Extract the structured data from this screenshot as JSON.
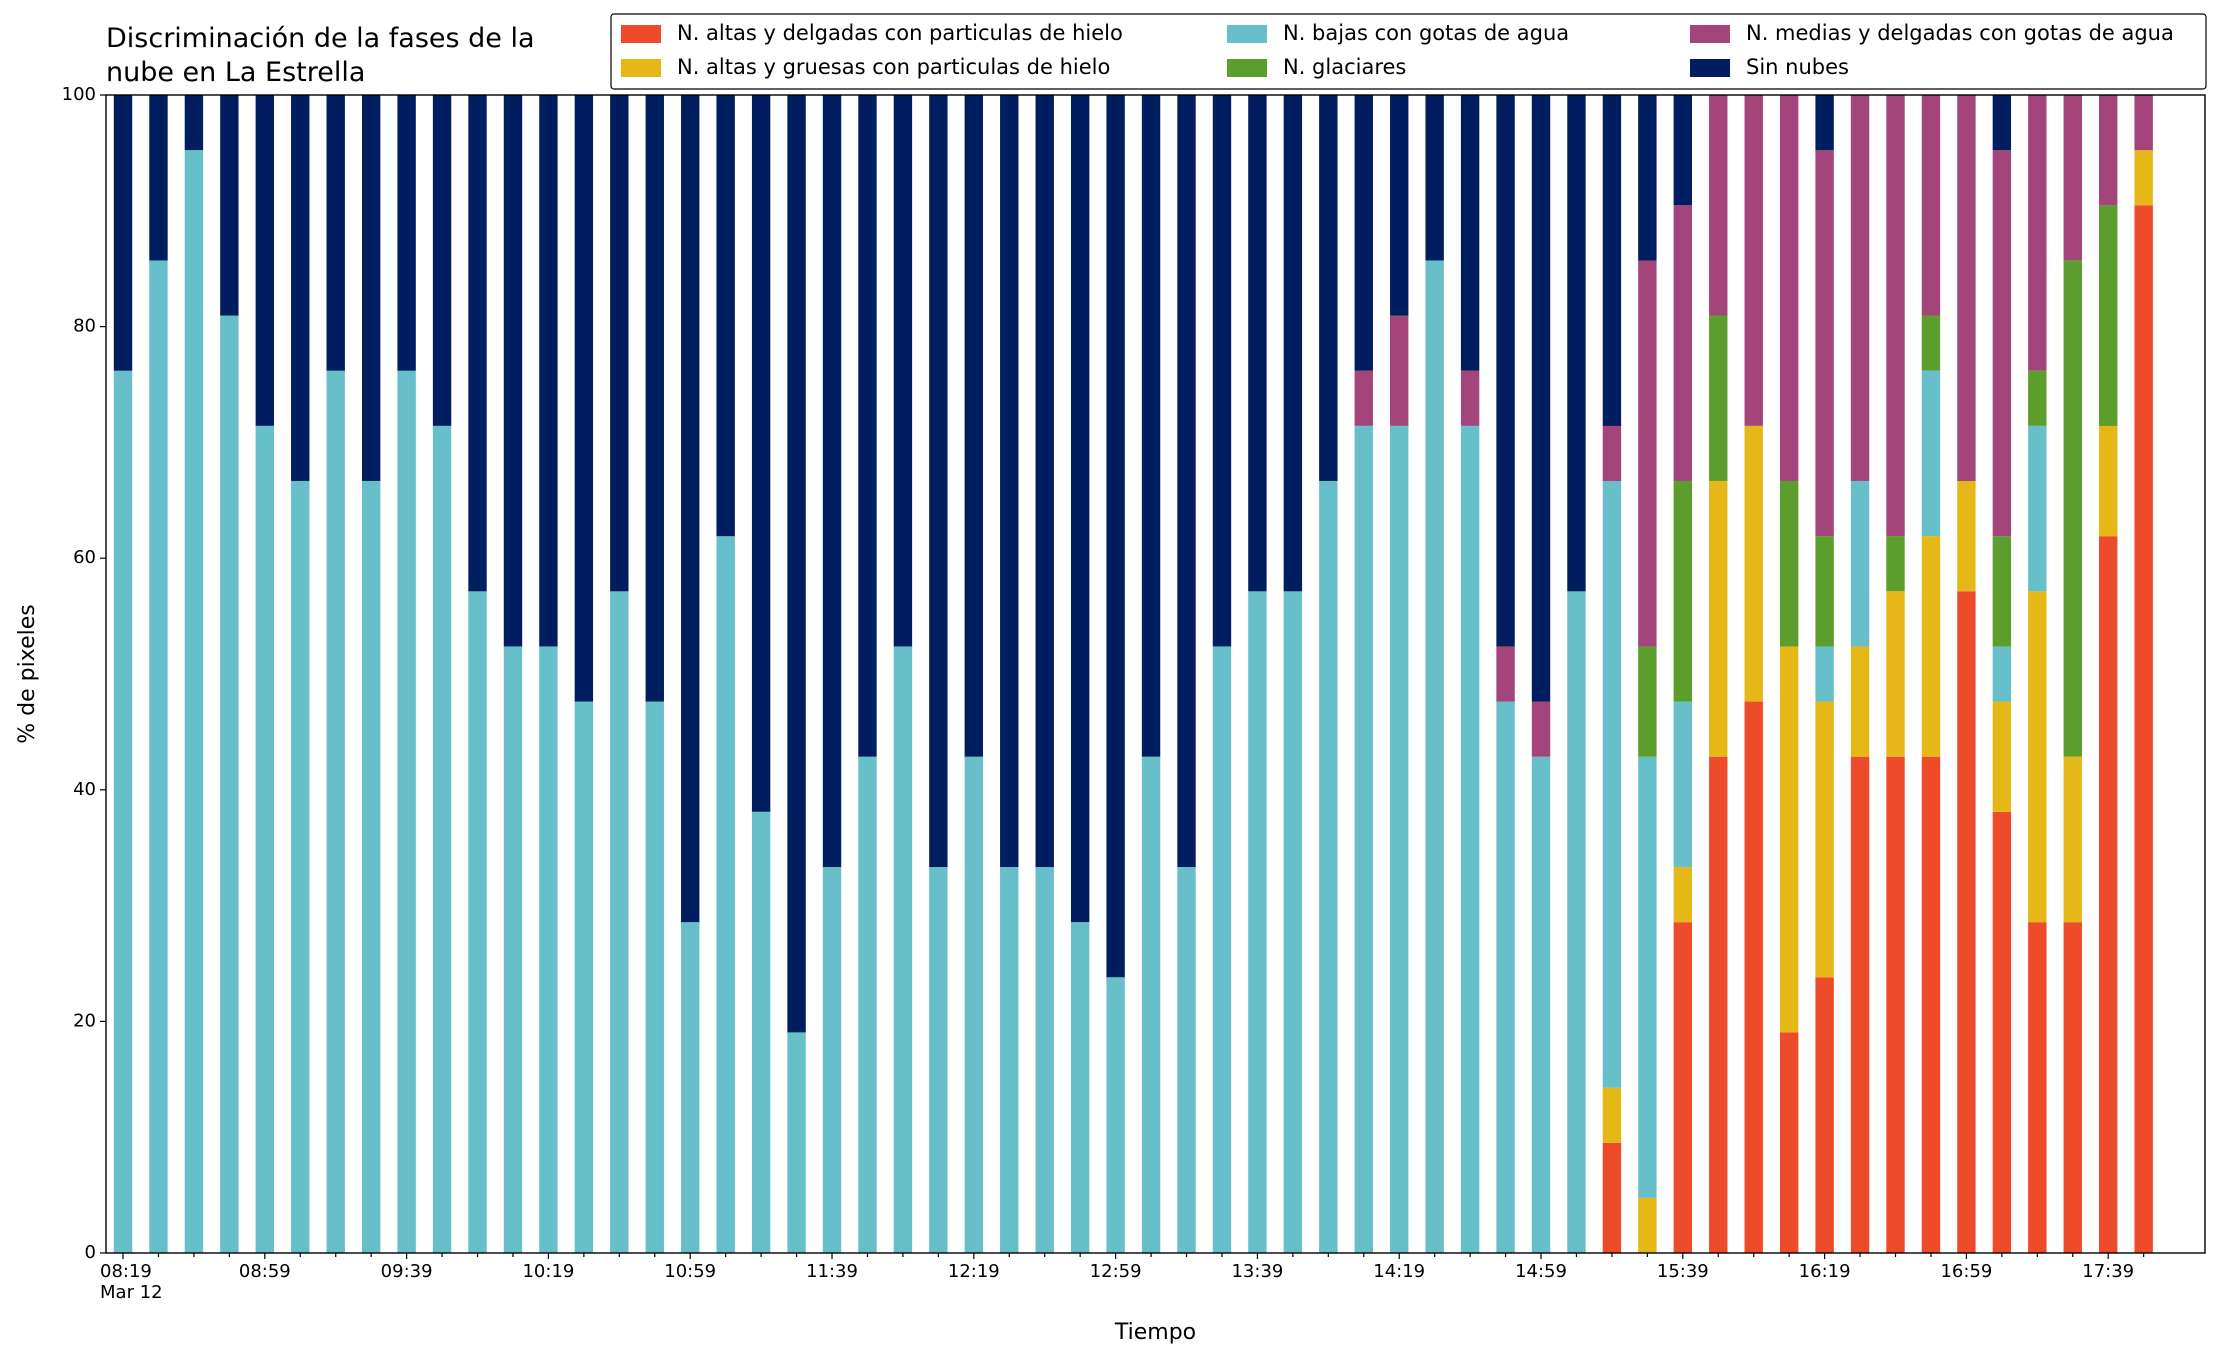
{
  "chart_data": {
    "type": "stacked_bar",
    "title": "Discriminación de la fases de la\nnube en La Estrella",
    "xlabel": "Tiempo",
    "ylabel": "% de pixeles",
    "categories": [
      "08:19\nMar 12",
      null,
      null,
      null,
      "08:59",
      null,
      null,
      null,
      "09:39",
      null,
      null,
      null,
      "10:19",
      null,
      null,
      null,
      "10:59",
      null,
      null,
      null,
      "11:39",
      null,
      null,
      null,
      "12:19",
      null,
      null,
      null,
      "12:59",
      null,
      null,
      null,
      "13:39",
      null,
      null,
      null,
      "14:19",
      null,
      null,
      null,
      "14:59",
      null,
      null,
      null,
      "15:39",
      null,
      null,
      null,
      "16:19",
      null,
      null,
      null,
      "16:59",
      null,
      null,
      null,
      "17:39",
      null
    ],
    "series": [
      {
        "name": "N. altas y delgadas con particulas de hielo",
        "color": "#ee4b2b",
        "values": [
          0,
          0,
          0,
          0,
          0,
          0,
          0,
          0,
          0,
          0,
          0,
          0,
          0,
          0,
          0,
          0,
          0,
          0,
          0,
          0,
          0,
          0,
          0,
          0,
          0,
          0,
          0,
          0,
          0,
          0,
          0,
          0,
          0,
          0,
          0,
          0,
          0,
          0,
          0,
          0,
          0,
          0,
          9.52,
          0,
          28.57,
          42.86,
          47.62,
          19.05,
          23.81,
          42.86,
          42.86,
          42.86,
          57.14,
          38.1,
          28.57,
          28.57,
          61.9,
          90.48
        ]
      },
      {
        "name": "N. altas y gruesas con particulas de hielo",
        "color": "#e6b817",
        "values": [
          0,
          0,
          0,
          0,
          0,
          0,
          0,
          0,
          0,
          0,
          0,
          0,
          0,
          0,
          0,
          0,
          0,
          0,
          0,
          0,
          0,
          0,
          0,
          0,
          0,
          0,
          0,
          0,
          0,
          0,
          0,
          0,
          0,
          0,
          0,
          0,
          0,
          0,
          0,
          0,
          0,
          0,
          4.76,
          4.76,
          4.76,
          23.81,
          23.81,
          33.33,
          23.81,
          9.52,
          14.29,
          19.05,
          9.52,
          9.52,
          28.57,
          14.29,
          9.52,
          4.76
        ]
      },
      {
        "name": "N. bajas con gotas de agua",
        "color": "#67bfca",
        "values": [
          76.19,
          85.71,
          95.24,
          80.95,
          71.43,
          66.67,
          76.19,
          66.67,
          76.19,
          71.43,
          57.14,
          52.38,
          52.38,
          47.62,
          57.14,
          47.62,
          28.57,
          61.9,
          38.1,
          19.05,
          33.33,
          42.86,
          52.38,
          33.33,
          42.86,
          33.33,
          33.33,
          28.57,
          23.81,
          42.86,
          33.33,
          52.38,
          57.14,
          57.14,
          66.67,
          71.43,
          71.43,
          85.71,
          71.43,
          47.62,
          42.86,
          57.14,
          52.38,
          38.1,
          14.29,
          0,
          0,
          0,
          4.76,
          14.29,
          0,
          14.29,
          0,
          4.76,
          14.29,
          0,
          0,
          0
        ]
      },
      {
        "name": "N. glaciares",
        "color": "#5c9e2c",
        "values": [
          0,
          0,
          0,
          0,
          0,
          0,
          0,
          0,
          0,
          0,
          0,
          0,
          0,
          0,
          0,
          0,
          0,
          0,
          0,
          0,
          0,
          0,
          0,
          0,
          0,
          0,
          0,
          0,
          0,
          0,
          0,
          0,
          0,
          0,
          0,
          0,
          0,
          0,
          0,
          0,
          0,
          0,
          0,
          9.52,
          19.05,
          14.29,
          0,
          14.29,
          9.52,
          0,
          4.76,
          4.76,
          0,
          9.52,
          4.76,
          42.86,
          19.05,
          0
        ]
      },
      {
        "name": "N. medias y delgadas con gotas de agua",
        "color": "#a3447a",
        "values": [
          0,
          0,
          0,
          0,
          0,
          0,
          0,
          0,
          0,
          0,
          0,
          0,
          0,
          0,
          0,
          0,
          0,
          0,
          0,
          0,
          0,
          0,
          0,
          0,
          0,
          0,
          0,
          0,
          0,
          0,
          0,
          0,
          0,
          0,
          0,
          4.76,
          9.52,
          0,
          4.76,
          4.76,
          4.76,
          0,
          4.76,
          33.33,
          23.81,
          19.05,
          28.57,
          33.33,
          33.33,
          33.33,
          38.1,
          19.05,
          33.33,
          33.33,
          23.81,
          14.29,
          9.52,
          4.76
        ]
      },
      {
        "name": "Sin nubes",
        "color": "#001e5f",
        "values": [
          23.81,
          14.29,
          4.76,
          19.05,
          28.57,
          33.33,
          23.81,
          33.33,
          23.81,
          28.57,
          42.86,
          47.62,
          47.62,
          52.38,
          42.86,
          52.38,
          71.43,
          38.1,
          61.9,
          80.95,
          66.67,
          57.14,
          47.62,
          66.67,
          57.14,
          66.67,
          66.67,
          71.43,
          76.19,
          57.14,
          66.67,
          47.62,
          42.86,
          42.86,
          33.33,
          23.81,
          19.05,
          14.29,
          23.81,
          47.62,
          52.38,
          42.86,
          28.57,
          14.29,
          9.52,
          0,
          0,
          0,
          4.76,
          0,
          0,
          0,
          0,
          4.76,
          0,
          0,
          0,
          0
        ]
      }
    ],
    "ylim": [
      0,
      100
    ],
    "yticks": [
      0,
      20,
      40,
      60,
      80,
      100
    ],
    "grid": false,
    "legend": "upper right",
    "legend_columns": 3
  }
}
